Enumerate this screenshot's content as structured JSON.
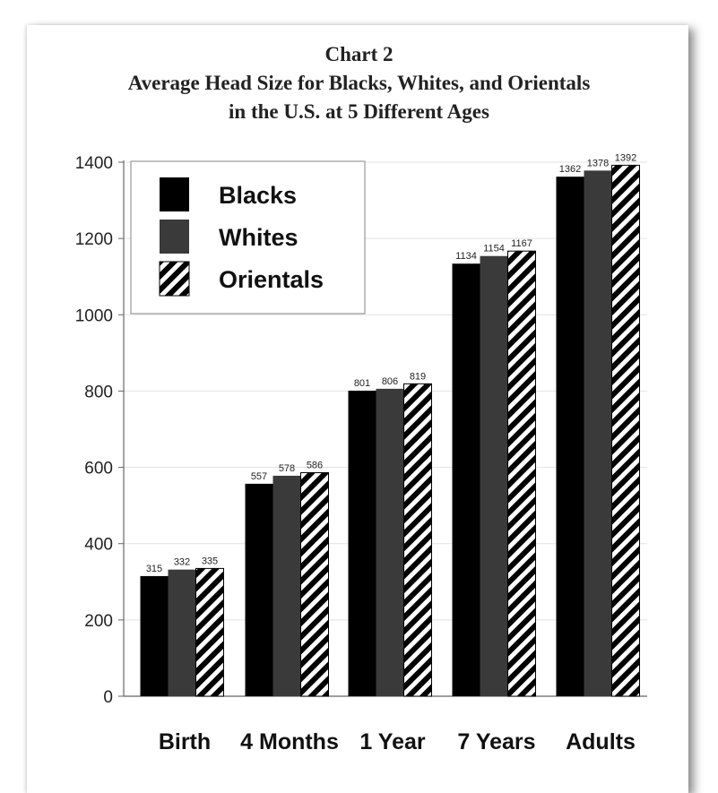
{
  "chart_data": {
    "type": "bar",
    "title": [
      "Chart 2",
      "Average Head Size for Blacks, Whites, and Orientals",
      "in the U.S. at 5 Different Ages"
    ],
    "xlabel": "",
    "ylabel": "",
    "categories": [
      "Birth",
      "4 Months",
      "1 Year",
      "7 Years",
      "Adults"
    ],
    "series": [
      {
        "name": "Blacks",
        "values": [
          315,
          557,
          801,
          1134,
          1362
        ],
        "pattern": "solid",
        "color": "#000000"
      },
      {
        "name": "Whites",
        "values": [
          332,
          578,
          806,
          1154,
          1378
        ],
        "pattern": "solid",
        "color": "#3a3a3a"
      },
      {
        "name": "Orientals",
        "values": [
          335,
          586,
          819,
          1167,
          1392
        ],
        "pattern": "diagonal-stripes",
        "color": "#000000"
      }
    ],
    "ylim": [
      0,
      1400
    ],
    "yticks": [
      0,
      200,
      400,
      600,
      800,
      1000,
      1200,
      1400
    ],
    "grid": true,
    "legend_position": "top-left"
  }
}
